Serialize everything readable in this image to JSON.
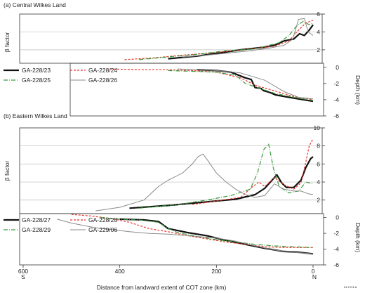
{
  "figure": {
    "xlabel": "Distance from landward extent of COT zone (km)",
    "x_end_labels": {
      "left": "S",
      "right": "N"
    },
    "credit": "01-1721-8"
  },
  "chart_data": [
    {
      "type": "line",
      "panel": "a",
      "title": "(a) Central Wilkes Land",
      "xlim": [
        650,
        -20
      ],
      "xticks": [
        600,
        400,
        200,
        0
      ],
      "beta": {
        "ylabel": "β factor",
        "ylim": [
          0.5,
          6
        ],
        "yticks": [
          2,
          4,
          6
        ],
        "gridlines": [
          2,
          4
        ]
      },
      "depth": {
        "ylabel": "Depth (km)",
        "ylim": [
          -6,
          0.5
        ],
        "yticks": [
          0,
          -2,
          -4,
          -6
        ]
      },
      "series": [
        {
          "name": "GA-228/23",
          "color": "#111111",
          "dash": "",
          "width": 2.2,
          "beta": [
            [
              300,
              1.0
            ],
            [
              240,
              1.3
            ],
            [
              200,
              1.6
            ],
            [
              150,
              2.0
            ],
            [
              100,
              2.3
            ],
            [
              80,
              2.5
            ],
            [
              60,
              3.0
            ],
            [
              40,
              3.2
            ],
            [
              28,
              3.8
            ],
            [
              18,
              3.6
            ],
            [
              8,
              4.2
            ],
            [
              0,
              4.8
            ]
          ],
          "depth": [
            [
              240,
              -0.3
            ],
            [
              200,
              -0.4
            ],
            [
              170,
              -0.6
            ],
            [
              140,
              -1.3
            ],
            [
              128,
              -1.5
            ],
            [
              120,
              -2.5
            ],
            [
              108,
              -2.6
            ],
            [
              102,
              -2.9
            ],
            [
              90,
              -3.1
            ],
            [
              78,
              -3.4
            ],
            [
              60,
              -3.6
            ],
            [
              30,
              -3.9
            ],
            [
              0,
              -4.2
            ]
          ]
        },
        {
          "name": "GA-228/24",
          "color": "#e8362c",
          "dash": "3,2",
          "width": 1.2,
          "beta": [
            [
              390,
              0.9
            ],
            [
              330,
              1.1
            ],
            [
              270,
              1.4
            ],
            [
              200,
              1.7
            ],
            [
              130,
              2.1
            ],
            [
              80,
              2.4
            ],
            [
              50,
              3.0
            ],
            [
              30,
              4.2
            ],
            [
              15,
              5.0
            ],
            [
              0,
              5.3
            ]
          ],
          "depth": [
            [
              420,
              -0.2
            ],
            [
              360,
              -0.3
            ],
            [
              300,
              -0.3
            ],
            [
              250,
              -0.4
            ],
            [
              200,
              -0.6
            ],
            [
              150,
              -1.3
            ],
            [
              120,
              -2.2
            ],
            [
              80,
              -2.9
            ],
            [
              40,
              -3.6
            ],
            [
              0,
              -4.0
            ]
          ]
        },
        {
          "name": "GA-228/25",
          "color": "#3a9a3a",
          "dash": "6,2,1,2",
          "width": 1.2,
          "beta": [
            [
              360,
              0.9
            ],
            [
              300,
              1.2
            ],
            [
              240,
              1.5
            ],
            [
              180,
              1.9
            ],
            [
              120,
              2.1
            ],
            [
              70,
              2.8
            ],
            [
              50,
              3.6
            ],
            [
              35,
              4.6
            ],
            [
              20,
              5.2
            ],
            [
              8,
              4.8
            ],
            [
              0,
              5.0
            ]
          ],
          "depth": [
            [
              300,
              -0.4
            ],
            [
              250,
              -0.5
            ],
            [
              200,
              -0.6
            ],
            [
              160,
              -1.0
            ],
            [
              140,
              -2.0
            ],
            [
              120,
              -2.4
            ],
            [
              80,
              -3.2
            ],
            [
              40,
              -3.7
            ],
            [
              0,
              -4.1
            ]
          ]
        },
        {
          "name": "GA-228/26",
          "color": "#8a8a8a",
          "dash": "",
          "width": 1.0,
          "beta": [
            [
              270,
              1.2
            ],
            [
              200,
              1.5
            ],
            [
              130,
              1.9
            ],
            [
              90,
              2.2
            ],
            [
              60,
              2.5
            ],
            [
              42,
              3.2
            ],
            [
              30,
              5.4
            ],
            [
              18,
              5.5
            ],
            [
              10,
              4.0
            ],
            [
              0,
              3.6
            ]
          ],
          "depth": [
            [
              280,
              -0.2
            ],
            [
              200,
              -0.4
            ],
            [
              150,
              -0.7
            ],
            [
              100,
              -1.6
            ],
            [
              60,
              -3.0
            ],
            [
              30,
              -3.7
            ],
            [
              0,
              -3.9
            ]
          ]
        }
      ]
    },
    {
      "type": "line",
      "panel": "b",
      "title": "(b) Eastern Wilkes Land",
      "xlim": [
        650,
        -20
      ],
      "xticks": [
        600,
        400,
        200,
        0
      ],
      "beta": {
        "ylabel": "β factor",
        "ylim": [
          0.5,
          10
        ],
        "yticks": [
          2,
          4,
          6,
          8,
          10
        ],
        "gridlines": [
          2,
          4,
          6,
          8
        ]
      },
      "depth": {
        "ylabel": "Depth (km)",
        "ylim": [
          -6,
          0.5
        ],
        "yticks": [
          0,
          -2,
          -4,
          -6
        ]
      },
      "series": [
        {
          "name": "GA-228/27",
          "color": "#111111",
          "dash": "",
          "width": 2.2,
          "beta": [
            [
              380,
              1.1
            ],
            [
              300,
              1.4
            ],
            [
              220,
              1.8
            ],
            [
              160,
              2.1
            ],
            [
              120,
              2.6
            ],
            [
              100,
              3.3
            ],
            [
              85,
              4.2
            ],
            [
              75,
              4.8
            ],
            [
              65,
              3.9
            ],
            [
              55,
              3.4
            ],
            [
              40,
              3.4
            ],
            [
              25,
              4.2
            ],
            [
              15,
              5.6
            ],
            [
              5,
              6.6
            ],
            [
              0,
              6.8
            ]
          ],
          "depth": [
            [
              400,
              -0.2
            ],
            [
              350,
              -0.3
            ],
            [
              320,
              -0.5
            ],
            [
              300,
              -1.4
            ],
            [
              260,
              -1.9
            ],
            [
              220,
              -2.3
            ],
            [
              180,
              -2.9
            ],
            [
              140,
              -3.4
            ],
            [
              100,
              -3.9
            ],
            [
              60,
              -4.3
            ],
            [
              30,
              -4.4
            ],
            [
              0,
              -4.6
            ]
          ]
        },
        {
          "name": "GA-228/28",
          "color": "#e8362c",
          "dash": "3,2",
          "width": 1.2,
          "beta": [
            [
              250,
              1.5
            ],
            [
              200,
              1.9
            ],
            [
              150,
              2.3
            ],
            [
              125,
              3.5
            ],
            [
              112,
              4.0
            ],
            [
              100,
              3.5
            ],
            [
              80,
              4.5
            ],
            [
              60,
              3.7
            ],
            [
              40,
              3.2
            ],
            [
              25,
              3.9
            ],
            [
              15,
              6.2
            ],
            [
              8,
              8.0
            ],
            [
              0,
              8.8
            ]
          ],
          "depth": [
            [
              500,
              0.4
            ],
            [
              460,
              0.2
            ],
            [
              420,
              -0.1
            ],
            [
              380,
              -0.6
            ],
            [
              340,
              -1.4
            ],
            [
              300,
              -1.8
            ],
            [
              260,
              -2.3
            ],
            [
              220,
              -2.7
            ],
            [
              180,
              -3.1
            ],
            [
              140,
              -3.4
            ],
            [
              100,
              -3.7
            ],
            [
              60,
              -3.8
            ],
            [
              0,
              -3.8
            ]
          ]
        },
        {
          "name": "GA-228/29",
          "color": "#3a9a3a",
          "dash": "6,2,1,2",
          "width": 1.2,
          "beta": [
            [
              360,
              1.1
            ],
            [
              280,
              1.5
            ],
            [
              220,
              2.0
            ],
            [
              170,
              2.5
            ],
            [
              130,
              3.2
            ],
            [
              115,
              5.0
            ],
            [
              102,
              7.6
            ],
            [
              92,
              8.2
            ],
            [
              82,
              5.5
            ],
            [
              70,
              3.5
            ],
            [
              50,
              2.8
            ],
            [
              30,
              3.0
            ],
            [
              15,
              4.0
            ],
            [
              0,
              3.8
            ]
          ],
          "depth": [
            [
              440,
              0.0
            ],
            [
              400,
              -0.2
            ],
            [
              360,
              -0.3
            ],
            [
              320,
              -0.6
            ],
            [
              300,
              -1.4
            ],
            [
              280,
              -1.9
            ],
            [
              240,
              -2.4
            ],
            [
              200,
              -2.8
            ],
            [
              160,
              -3.1
            ],
            [
              120,
              -3.4
            ],
            [
              80,
              -3.6
            ],
            [
              40,
              -3.7
            ],
            [
              0,
              -3.8
            ]
          ]
        },
        {
          "name": "GA-229/06",
          "color": "#8a8a8a",
          "dash": "",
          "width": 1.0,
          "beta": [
            [
              450,
              0.8
            ],
            [
              400,
              1.2
            ],
            [
              350,
              2.0
            ],
            [
              320,
              3.5
            ],
            [
              300,
              4.2
            ],
            [
              270,
              5.0
            ],
            [
              250,
              6.0
            ],
            [
              238,
              6.8
            ],
            [
              228,
              7.1
            ],
            [
              218,
              6.4
            ],
            [
              200,
              5.0
            ],
            [
              180,
              4.0
            ],
            [
              160,
              3.2
            ],
            [
              140,
              2.6
            ],
            [
              120,
              2.3
            ],
            [
              100,
              2.5
            ],
            [
              80,
              3.8
            ],
            [
              60,
              3.2
            ],
            [
              40,
              3.0
            ],
            [
              25,
              3.0
            ],
            [
              10,
              2.7
            ],
            [
              0,
              2.6
            ]
          ],
          "depth": [
            [
              530,
              -0.2
            ],
            [
              500,
              -0.7
            ],
            [
              450,
              -1.3
            ],
            [
              420,
              -1.5
            ],
            [
              380,
              -1.8
            ],
            [
              340,
              -2.0
            ],
            [
              300,
              -2.1
            ],
            [
              260,
              -2.3
            ],
            [
              200,
              -2.6
            ],
            [
              160,
              -3.0
            ],
            [
              120,
              -3.6
            ],
            [
              80,
              -4.1
            ],
            [
              40,
              -4.4
            ],
            [
              0,
              -4.6
            ]
          ]
        }
      ]
    }
  ]
}
